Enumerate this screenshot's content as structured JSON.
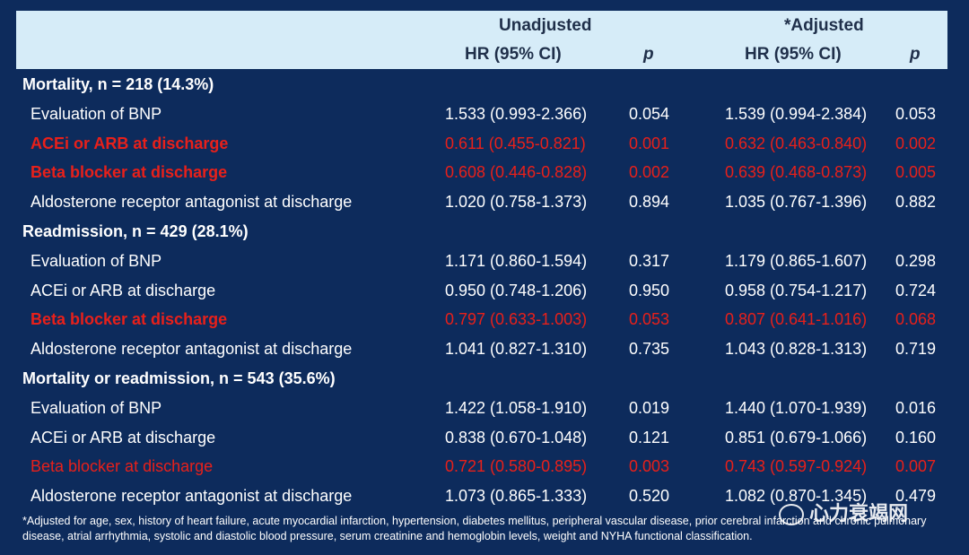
{
  "header": {
    "unadjusted": "Unadjusted",
    "adjusted": "*Adjusted",
    "hr1": "HR (95% CI)",
    "p1": "p",
    "hr2": "HR (95% CI)",
    "p2": "p"
  },
  "rows": [
    {
      "type": "section",
      "label": "Mortality, n = 218 (14.3%)"
    },
    {
      "type": "data",
      "label": "Evaluation of BNP",
      "hr1": "1.533 (0.993-2.366)",
      "p1": "0.054",
      "hr2": "1.539 (0.994-2.384)",
      "p2": "0.053",
      "highlight": false
    },
    {
      "type": "data",
      "label": "ACEi or ARB at discharge",
      "hr1": "0.611 (0.455-0.821)",
      "p1": "0.001",
      "hr2": "0.632 (0.463-0.840)",
      "p2": "0.002",
      "highlight": true
    },
    {
      "type": "data",
      "label": "Beta blocker at discharge",
      "hr1": "0.608 (0.446-0.828)",
      "p1": "0.002",
      "hr2": "0.639 (0.468-0.873)",
      "p2": "0.005",
      "highlight": true
    },
    {
      "type": "data",
      "label": "Aldosterone receptor antagonist at discharge",
      "hr1": "1.020 (0.758-1.373)",
      "p1": "0.894",
      "hr2": "1.035 (0.767-1.396)",
      "p2": "0.882",
      "highlight": false
    },
    {
      "type": "section",
      "label": "Readmission, n = 429 (28.1%)"
    },
    {
      "type": "data",
      "label": "Evaluation of BNP",
      "hr1": "1.171 (0.860-1.594)",
      "p1": "0.317",
      "hr2": "1.179 (0.865-1.607)",
      "p2": "0.298",
      "highlight": false
    },
    {
      "type": "data",
      "label": "ACEi or ARB at discharge",
      "hr1": "0.950 (0.748-1.206)",
      "p1": "0.950",
      "hr2": "0.958 (0.754-1.217)",
      "p2": "0.724",
      "highlight": false
    },
    {
      "type": "data",
      "label": "Beta blocker at discharge",
      "hr1": "0.797 (0.633-1.003)",
      "p1": "0.053",
      "hr2": "0.807 (0.641-1.016)",
      "p2": "0.068",
      "highlight": true
    },
    {
      "type": "data",
      "label": "Aldosterone receptor antagonist at discharge",
      "hr1": "1.041 (0.827-1.310)",
      "p1": "0.735",
      "hr2": "1.043 (0.828-1.313)",
      "p2": "0.719",
      "highlight": false
    },
    {
      "type": "section",
      "label": "Mortality or readmission, n = 543 (35.6%)"
    },
    {
      "type": "data",
      "label": "Evaluation of BNP",
      "hr1": "1.422 (1.058-1.910)",
      "p1": "0.019",
      "hr2": "1.440 (1.070-1.939)",
      "p2": "0.016",
      "highlight": false
    },
    {
      "type": "data",
      "label": "ACEi or ARB at discharge",
      "hr1": "0.838 (0.670-1.048)",
      "p1": "0.121",
      "hr2": "0.851 (0.679-1.066)",
      "p2": "0.160",
      "highlight": false
    },
    {
      "type": "data",
      "label": "Beta blocker at discharge",
      "hr1": "0.721 (0.580-0.895)",
      "p1": "0.003",
      "hr2": "0.743 (0.597-0.924)",
      "p2": "0.007",
      "highlight": true,
      "plain": true
    },
    {
      "type": "data",
      "label": "Aldosterone receptor antagonist at discharge",
      "hr1": "1.073 (0.865-1.333)",
      "p1": "0.520",
      "hr2": "1.082 (0.870-1.345)",
      "p2": "0.479",
      "highlight": false
    }
  ],
  "footnote": "*Adjusted for age, sex, history of heart failure, acute myocardial infarction, hypertension, diabetes mellitus, peripheral vascular disease, prior cerebral infarction and chronic pulmonary disease, atrial arrhythmia, systolic and diastolic blood pressure, serum creatinine and hemoglobin levels, weight and NYHA functional classification.",
  "watermark": "心力衰竭网",
  "colors": {
    "background": "#0d2b5c",
    "header_bg": "#d6ecf8",
    "highlight": "#e8201a"
  }
}
